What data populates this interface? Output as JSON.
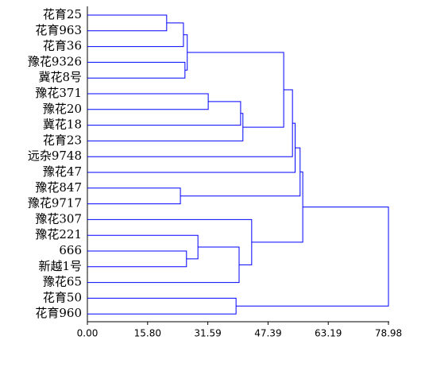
{
  "chart_data": {
    "type": "dendrogram",
    "leaves": [
      "花育25",
      "花育963",
      "花育36",
      "豫花9326",
      "冀花8号",
      "豫花371",
      "豫花20",
      "冀花18",
      "花育23",
      "远杂9748",
      "豫花47",
      "豫花847",
      "豫花9717",
      "豫花307",
      "豫花221",
      "666",
      "新越1号",
      "豫花65",
      "花育50",
      "花育960"
    ],
    "merges": [
      {
        "children": [
          0,
          1
        ],
        "height": 20.8
      },
      {
        "children": [
          20,
          2
        ],
        "height": 25.2
      },
      {
        "children": [
          3,
          4
        ],
        "height": 25.6
      },
      {
        "children": [
          21,
          22
        ],
        "height": 26.2
      },
      {
        "children": [
          5,
          6
        ],
        "height": 31.7
      },
      {
        "children": [
          24,
          7
        ],
        "height": 40.2
      },
      {
        "children": [
          25,
          8
        ],
        "height": 40.8
      },
      {
        "children": [
          23,
          26
        ],
        "height": 51.5
      },
      {
        "children": [
          27,
          9
        ],
        "height": 53.8
      },
      {
        "children": [
          28,
          10
        ],
        "height": 54.5
      },
      {
        "children": [
          11,
          12
        ],
        "height": 24.4
      },
      {
        "children": [
          29,
          30
        ],
        "height": 55.8
      },
      {
        "children": [
          15,
          16
        ],
        "height": 26.0
      },
      {
        "children": [
          14,
          32
        ],
        "height": 29.0
      },
      {
        "children": [
          33,
          17
        ],
        "height": 39.8
      },
      {
        "children": [
          13,
          34
        ],
        "height": 43.1
      },
      {
        "children": [
          31,
          35
        ],
        "height": 56.5
      },
      {
        "children": [
          18,
          19
        ],
        "height": 39.0
      },
      {
        "children": [
          36,
          37
        ],
        "height": 78.98
      }
    ],
    "color": "#0000ff",
    "xlim": [
      0,
      78.98
    ],
    "xticks": [
      {
        "value": 0,
        "label": "0.00"
      },
      {
        "value": 15.8,
        "label": "15.80"
      },
      31.59,
      47.39,
      63.19,
      78.98
    ]
  }
}
